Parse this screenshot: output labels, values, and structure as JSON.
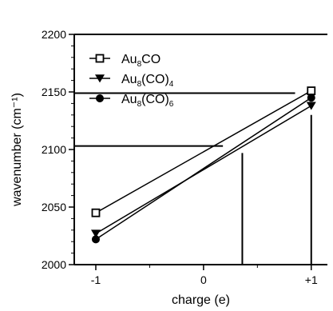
{
  "chart_data": {
    "type": "scatter",
    "xlabel": "charge (e)",
    "ylabel": "wavenumber (cm⁻¹)",
    "xlim": [
      -1.2,
      1.15
    ],
    "ylim": [
      2000,
      2200
    ],
    "x_ticks": [
      {
        "value": -1,
        "label": "-1"
      },
      {
        "value": 0,
        "label": "0"
      },
      {
        "value": 1,
        "label": "+1"
      }
    ],
    "y_ticks": [
      {
        "value": 2000,
        "label": "2000"
      },
      {
        "value": 2050,
        "label": "2050"
      },
      {
        "value": 2100,
        "label": "2100"
      },
      {
        "value": 2150,
        "label": "2150"
      },
      {
        "value": 2200,
        "label": "2200"
      }
    ],
    "legend_position": "top-left",
    "series": [
      {
        "name": "Au8CO",
        "label_main": "Au",
        "label_sub1": "8",
        "label_mid": "CO",
        "label_sub2": "",
        "marker": "open-square",
        "x": [
          -1,
          1
        ],
        "y": [
          2045,
          2151
        ]
      },
      {
        "name": "Au8(CO)4",
        "label_main": "Au",
        "label_sub1": "8",
        "label_mid": "(CO)",
        "label_sub2": "4",
        "marker": "filled-triangle-down",
        "x": [
          -1,
          1
        ],
        "y": [
          2027,
          2138
        ]
      },
      {
        "name": "Au8(CO)6",
        "label_main": "Au",
        "label_sub1": "8",
        "label_mid": "(CO)",
        "label_sub2": "6",
        "marker": "filled-circle",
        "x": [
          -1,
          1
        ],
        "y": [
          2022,
          2145
        ]
      }
    ],
    "annotation_lines": [
      {
        "orientation": "horizontal",
        "y": 2149,
        "x_from": -1.2,
        "x_to": 0.85
      },
      {
        "orientation": "horizontal",
        "y": 2103,
        "x_from": -1.2,
        "x_to": 0.18
      },
      {
        "orientation": "vertical",
        "x": 0.36,
        "y_from": 2000,
        "y_to": 2097
      },
      {
        "orientation": "vertical",
        "x": 1.0,
        "y_from": 2000,
        "y_to": 2130
      }
    ],
    "colors": {
      "axis": "#000000",
      "series": "#000000",
      "background": "#ffffff"
    }
  }
}
